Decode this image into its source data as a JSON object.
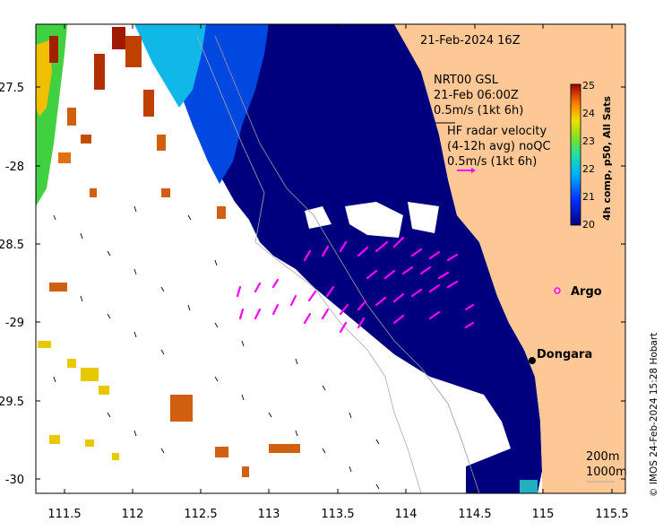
{
  "map": {
    "title": "21-Feb-2024 16Z",
    "x_axis": {
      "ticks": [
        "111.5",
        "112",
        "112.5",
        "113",
        "113.5",
        "114",
        "114.5",
        "115",
        "115.5"
      ],
      "values": [
        111.5,
        112,
        112.5,
        113,
        113.5,
        114,
        114.5,
        115,
        115.5
      ]
    },
    "y_axis": {
      "ticks": [
        "-27.5",
        "-28",
        "-28.5",
        "-29",
        "-29.5",
        "-30"
      ],
      "values": [
        -27.5,
        -28,
        -28.5,
        -29,
        -29.5,
        -30
      ]
    },
    "extent": {
      "lon": [
        111.3,
        115.6
      ],
      "lat": [
        -27.05,
        -30.1
      ]
    }
  },
  "legend": {
    "nrt_line1": "NRT00 GSL",
    "nrt_line2": "21-Feb 06:00Z",
    "nrt_scale": "0.5m/s (1kt 6h)",
    "hf_line1": "HF radar velocity",
    "hf_line2": "(4-12h avg) noQC",
    "hf_scale": "0.5m/s (1kt 6h)"
  },
  "colorbar": {
    "title": "4h comp, p50, All Sats",
    "ticks": [
      "25",
      "24",
      "23",
      "22",
      "21",
      "20"
    ],
    "range": [
      20,
      25
    ]
  },
  "places": {
    "argo": "Argo",
    "dongara": "Dongara"
  },
  "contours": {
    "c200": "200m",
    "c1000": "1000m"
  },
  "credit": "© IMOS 24-Feb-2024 15:28 Hobart",
  "colors": {
    "land": "#fdc896",
    "sst_20": "#00007f",
    "sst_21": "#0060ff",
    "sst_22": "#00d8d0",
    "sst_23": "#60e040",
    "sst_24": "#f0c000",
    "sst_25": "#a00000",
    "hf_vector": "#ff00ff"
  }
}
